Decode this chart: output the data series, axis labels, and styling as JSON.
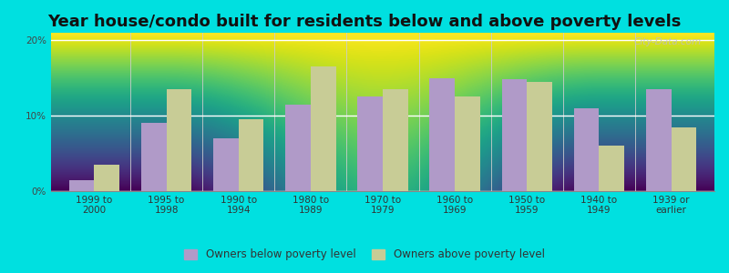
{
  "title": "Year house/condo built for residents below and above poverty levels",
  "categories": [
    "1999 to\n2000",
    "1995 to\n1998",
    "1990 to\n1994",
    "1980 to\n1989",
    "1970 to\n1979",
    "1960 to\n1969",
    "1950 to\n1959",
    "1940 to\n1949",
    "1939 or\nearlier"
  ],
  "below_poverty": [
    1.5,
    9.0,
    7.0,
    11.5,
    12.5,
    15.0,
    14.8,
    11.0,
    13.5
  ],
  "above_poverty": [
    3.5,
    13.5,
    9.5,
    16.5,
    13.5,
    12.5,
    14.5,
    6.0,
    8.5
  ],
  "below_color": "#b09ac8",
  "above_color": "#c8cc96",
  "plot_bg_top": "#ffffff",
  "plot_bg_bottom": "#d4f0d4",
  "outer_background": "#00e0e0",
  "ylim": [
    0,
    21
  ],
  "yticks": [
    0,
    10,
    20
  ],
  "ytick_labels": [
    "0%",
    "10%",
    "20%"
  ],
  "legend_below": "Owners below poverty level",
  "legend_above": "Owners above poverty level",
  "bar_width": 0.35,
  "title_fontsize": 13,
  "tick_fontsize": 7.5,
  "legend_fontsize": 8.5
}
